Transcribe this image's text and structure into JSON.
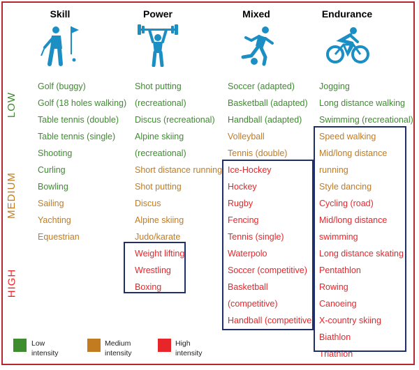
{
  "headers": {
    "skill": "Skill",
    "power": "Power",
    "mixed": "Mixed",
    "endurance": "Endurance"
  },
  "levels": {
    "low": "LOW",
    "medium": "MEDIUM",
    "high": "HIGH"
  },
  "colors": {
    "low": "#3d8c2e",
    "medium": "#c27b1f",
    "high": "#e8262a",
    "box": "#1f2f6b",
    "frame": "#b5262e",
    "icon": "#1b8fc4"
  },
  "icons": {
    "skill": "golfer-icon",
    "power": "weightlifter-icon",
    "mixed": "soccer-player-icon",
    "endurance": "cyclist-icon"
  },
  "skill": [
    {
      "t": "Golf (buggy)",
      "c": "low"
    },
    {
      "t": "Golf (18 holes walking)",
      "c": "low"
    },
    {
      "t": "Table tennis (double)",
      "c": "low"
    },
    {
      "t": "Table tennis (single)",
      "c": "low"
    },
    {
      "t": "Shooting",
      "c": "low"
    },
    {
      "t": "Curling",
      "c": "low"
    },
    {
      "t": "Bowling",
      "c": "low"
    },
    {
      "t": "Sailing",
      "c": "med"
    },
    {
      "t": "Yachting",
      "c": "med"
    },
    {
      "t": "Equestrian",
      "c": "med"
    }
  ],
  "power": [
    {
      "t": "Shot putting",
      "c": "low"
    },
    {
      "t": "(recreational)",
      "c": "low"
    },
    {
      "t": "Discus (recreational)",
      "c": "low"
    },
    {
      "t": "Alpine skiing",
      "c": "low"
    },
    {
      "t": "(recreational)",
      "c": "low"
    },
    {
      "t": "Short distance running",
      "c": "med"
    },
    {
      "t": "Shot putting",
      "c": "med"
    },
    {
      "t": "Discus",
      "c": "med"
    },
    {
      "t": "Alpine skiing",
      "c": "med"
    },
    {
      "t": "Judo/karate",
      "c": "med"
    },
    {
      "t": "Weight lifting",
      "c": "high"
    },
    {
      "t": "Wrestling",
      "c": "high"
    },
    {
      "t": "Boxing",
      "c": "high"
    }
  ],
  "mixed": [
    {
      "t": "Soccer (adapted)",
      "c": "low"
    },
    {
      "t": "Basketball (adapted)",
      "c": "low"
    },
    {
      "t": "Handball (adapted)",
      "c": "low"
    },
    {
      "t": "Volleyball",
      "c": "med"
    },
    {
      "t": "Tennis (double)",
      "c": "med"
    },
    {
      "t": "Ice-Hockey",
      "c": "high"
    },
    {
      "t": "Hockey",
      "c": "high"
    },
    {
      "t": "Rugby",
      "c": "high"
    },
    {
      "t": "Fencing",
      "c": "high"
    },
    {
      "t": "Tennis (single)",
      "c": "high"
    },
    {
      "t": "Waterpolo",
      "c": "high"
    },
    {
      "t": "Soccer (competitive)",
      "c": "high"
    },
    {
      "t": "Basketball",
      "c": "high"
    },
    {
      "t": "(competitive)",
      "c": "high"
    },
    {
      "t": "Handball (competitive)",
      "c": "high"
    }
  ],
  "endurance": [
    {
      "t": "Jogging",
      "c": "low"
    },
    {
      "t": "Long distance walking",
      "c": "low"
    },
    {
      "t": "Swimming (recreational)",
      "c": "low"
    },
    {
      "t": "Speed walking",
      "c": "med"
    },
    {
      "t": "Mid/long distance",
      "c": "med"
    },
    {
      "t": "running",
      "c": "med"
    },
    {
      "t": "Style dancing",
      "c": "med"
    },
    {
      "t": "Cycling (road)",
      "c": "high"
    },
    {
      "t": "Mid/long distance",
      "c": "high"
    },
    {
      "t": "swimming",
      "c": "high"
    },
    {
      "t": "Long distance skating",
      "c": "high"
    },
    {
      "t": "Pentathlon",
      "c": "high"
    },
    {
      "t": "Rowing",
      "c": "high"
    },
    {
      "t": "Canoeing",
      "c": "high"
    },
    {
      "t": "X-country skiing",
      "c": "high"
    },
    {
      "t": "Biathlon",
      "c": "high"
    },
    {
      "t": "Triathlon",
      "c": "high"
    }
  ],
  "legend": {
    "low": "Low intensity",
    "medium": "Medium intensity",
    "high": "High intensity"
  }
}
